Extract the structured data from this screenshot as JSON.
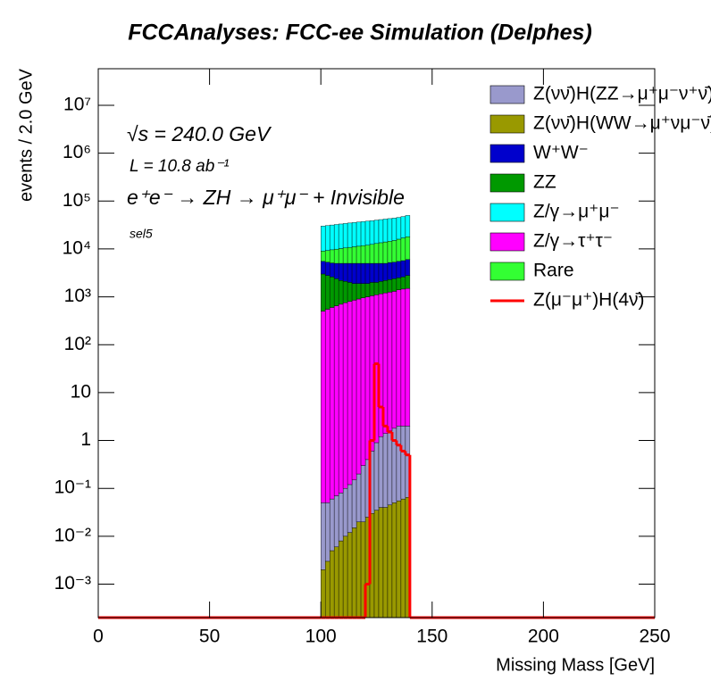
{
  "chart_data": {
    "type": "stacked_histogram",
    "title": "FCCAnalyses: FCC-ee Simulation (Delphes)",
    "annotations": [
      "√s = 240.0 GeV",
      "L = 10.8 ab⁻¹",
      "e⁺e⁻ → ZH → μ⁺μ⁻ + Invisible",
      "sel5"
    ],
    "xlabel": "Missing Mass [GeV]",
    "ylabel": "events / 2.0 GeV",
    "log_y": true,
    "xlim": [
      0,
      250
    ],
    "xticks": [
      0,
      50,
      100,
      150,
      200,
      250
    ],
    "ylim": [
      0.0002,
      58000000
    ],
    "yticks": [
      {
        "value": 0.001,
        "label": "10⁻³"
      },
      {
        "value": 0.01,
        "label": "10⁻²"
      },
      {
        "value": 0.1,
        "label": "10⁻¹"
      },
      1,
      10,
      {
        "value": 100,
        "label": "10²"
      },
      {
        "value": 1000,
        "label": "10³"
      },
      {
        "value": 10000,
        "label": "10⁴"
      },
      {
        "value": 100000,
        "label": "10⁵"
      },
      {
        "value": 1000000,
        "label": "10⁶"
      },
      {
        "value": 10000000,
        "label": "10⁷"
      }
    ],
    "bins": [
      100,
      102,
      104,
      106,
      108,
      110,
      112,
      114,
      116,
      118,
      120,
      122,
      124,
      126,
      128,
      130,
      132,
      134,
      136,
      138,
      140
    ],
    "series": [
      {
        "name": "Z(νν̄)H(ZZ→μ⁺μ⁻ν⁺ν̄)",
        "color": "#9999cc",
        "values": [
          0.048,
          0.047,
          0.055,
          0.064,
          0.072,
          0.09,
          0.108,
          0.135,
          0.18,
          0.28,
          0.375,
          0.57,
          0.865,
          1.16,
          1.36,
          1.555,
          1.75,
          1.945,
          1.94,
          1.935
        ]
      },
      {
        "name": "Z(νν̄)H(WW→μ⁺νμ⁻ν̄)",
        "color": "#999900",
        "values": [
          0.002,
          0.003,
          0.005,
          0.006,
          0.008,
          0.01,
          0.012,
          0.015,
          0.02,
          0.02,
          0.025,
          0.03,
          0.035,
          0.04,
          0.04,
          0.045,
          0.05,
          0.055,
          0.06,
          0.065
        ]
      },
      {
        "name": "W⁺W⁻",
        "color": "#0000cc",
        "values": [
          2500,
          2500,
          2500,
          2600,
          2800,
          2900,
          3000,
          3100,
          3100,
          3100,
          3100,
          3000,
          3000,
          2900,
          2800,
          2900,
          2900,
          3000,
          3100,
          3200
        ]
      },
      {
        "name": "ZZ",
        "color": "#009900",
        "values": [
          2500,
          2250,
          2000,
          1750,
          1500,
          1350,
          1200,
          1050,
          1000,
          950,
          900,
          950,
          900,
          950,
          1000,
          1050,
          1100,
          1100,
          1150,
          1300
        ]
      },
      {
        "name": "Z/γ→μ⁺μ⁻",
        "color": "#00ffff",
        "values": [
          21000,
          21500,
          22000,
          22500,
          23000,
          23500,
          24000,
          24500,
          25000,
          25500,
          26000,
          26500,
          27000,
          27500,
          28000,
          28500,
          29000,
          29500,
          30500,
          32000
        ]
      },
      {
        "name": "Z/γ→τ⁺τ⁻",
        "color": "#ff00ff",
        "values": [
          500,
          550,
          600,
          650,
          700,
          750,
          800,
          850,
          900,
          950,
          1000,
          1050,
          1100,
          1150,
          1200,
          1250,
          1300,
          1400,
          1450,
          1500
        ]
      },
      {
        "name": "Rare",
        "color": "#33ff33",
        "values": [
          3500,
          4000,
          4500,
          4900,
          5200,
          5500,
          5800,
          6100,
          6400,
          6700,
          7000,
          7500,
          8000,
          8500,
          9000,
          9300,
          9700,
          10500,
          11300,
          12000
        ]
      }
    ],
    "signal": {
      "name": "Z(μ⁻μ⁺)H(4ν̄)",
      "color": "#ff0000",
      "values": [
        0,
        0,
        0,
        0,
        0,
        0,
        0,
        0,
        0,
        0,
        0.001,
        1,
        40,
        5,
        2,
        1.5,
        1,
        0.8,
        0.6,
        0.5
      ]
    }
  }
}
